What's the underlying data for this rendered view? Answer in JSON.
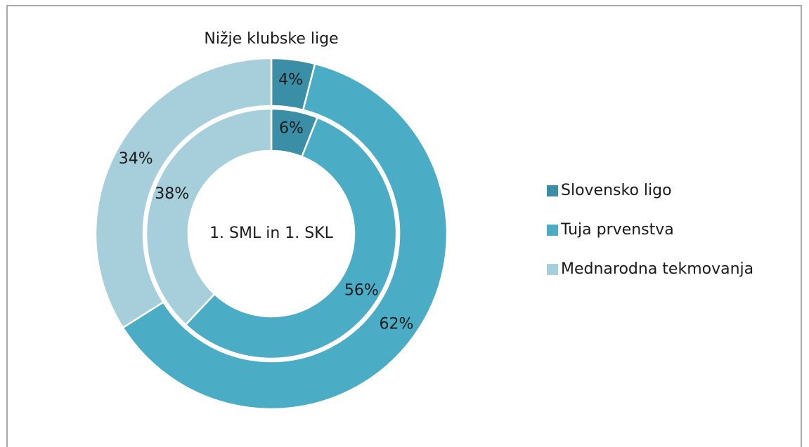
{
  "chart_data": {
    "type": "donut",
    "categories": [
      "Slovensko ligo",
      "Tuja prvenstva",
      "Mednarodna tekmovanja"
    ],
    "colors": [
      "#3a8ea5",
      "#4bacc6",
      "#a6cedb"
    ],
    "series": [
      {
        "name": "Nižje klubske lige",
        "values": [
          4,
          62,
          34
        ],
        "value_labels": [
          "4%",
          "62%",
          "34%"
        ]
      },
      {
        "name": "1. SML in 1. SKL",
        "values": [
          6,
          56,
          38
        ],
        "value_labels": [
          "6%",
          "56%",
          "38%"
        ]
      }
    ],
    "legend": "right"
  }
}
